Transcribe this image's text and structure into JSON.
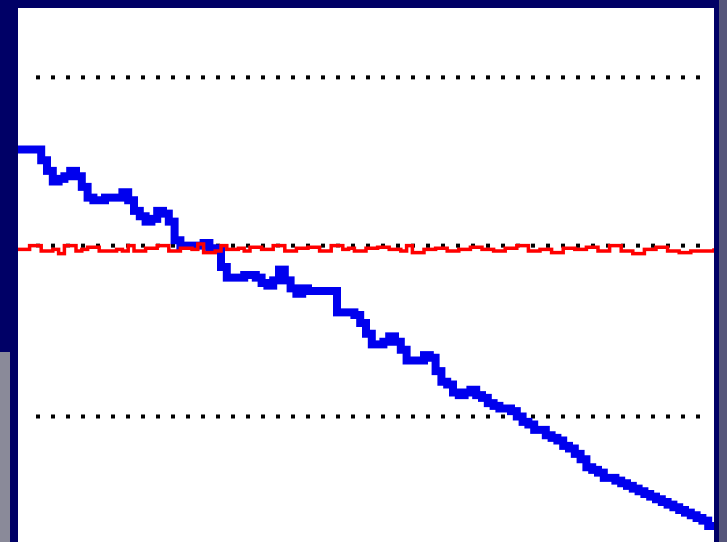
{
  "chart_data": {
    "type": "line",
    "title": "",
    "xlabel": "",
    "ylabel": "",
    "xlim": [
      0,
      120
    ],
    "ylim": [
      0,
      10
    ],
    "grid": false,
    "reference_lines": {
      "color": "#000000",
      "style": "dotted",
      "y": [
        8.7,
        5.55,
        2.35
      ]
    },
    "series": [
      {
        "color": "#0000ee",
        "x": [
          0,
          3,
          4,
          5,
          6,
          7,
          8,
          9,
          10,
          11,
          12,
          13,
          15,
          18,
          19,
          20,
          21,
          22,
          23,
          24,
          25,
          26,
          27,
          28,
          30,
          32,
          33,
          34,
          35,
          36,
          37,
          38,
          39,
          40,
          41,
          42,
          43,
          44,
          45,
          46,
          47,
          48,
          49,
          50,
          51,
          52,
          53,
          55,
          57,
          58,
          59,
          60,
          61,
          62,
          63,
          64,
          65,
          66,
          67,
          68,
          69,
          70,
          71,
          72,
          73,
          74,
          75,
          76,
          77,
          78,
          79,
          80,
          81,
          82,
          83,
          84,
          85,
          86,
          87,
          88,
          89,
          90,
          91,
          92,
          93,
          94,
          95,
          96,
          97,
          98,
          99,
          100,
          101,
          102,
          103,
          104,
          105,
          106,
          107,
          108,
          109,
          110,
          111,
          112,
          113,
          114,
          115,
          116,
          117,
          118,
          119,
          120
        ],
        "values": [
          7.35,
          7.35,
          7.15,
          6.95,
          6.75,
          6.8,
          6.85,
          6.95,
          6.85,
          6.65,
          6.45,
          6.4,
          6.45,
          6.55,
          6.4,
          6.2,
          6.1,
          6.0,
          6.05,
          6.2,
          6.15,
          6.0,
          5.65,
          5.55,
          5.55,
          5.6,
          5.5,
          5.5,
          5.15,
          4.95,
          4.95,
          4.95,
          5.0,
          5.0,
          4.95,
          4.85,
          4.8,
          4.9,
          5.1,
          4.9,
          4.75,
          4.65,
          4.75,
          4.7,
          4.7,
          4.7,
          4.7,
          4.3,
          4.3,
          4.25,
          4.1,
          3.9,
          3.7,
          3.7,
          3.75,
          3.85,
          3.75,
          3.6,
          3.4,
          3.4,
          3.4,
          3.5,
          3.45,
          3.2,
          3.0,
          2.95,
          2.8,
          2.75,
          2.8,
          2.85,
          2.75,
          2.7,
          2.6,
          2.55,
          2.5,
          2.5,
          2.45,
          2.35,
          2.25,
          2.2,
          2.1,
          2.1,
          2.0,
          1.95,
          1.9,
          1.8,
          1.75,
          1.65,
          1.55,
          1.4,
          1.35,
          1.3,
          1.2,
          1.2,
          1.15,
          1.1,
          1.05,
          1.0,
          0.95,
          0.9,
          0.85,
          0.8,
          0.75,
          0.7,
          0.65,
          0.6,
          0.55,
          0.5,
          0.45,
          0.4,
          0.3,
          0.25
        ]
      },
      {
        "color": "#ff0000",
        "x": [
          0,
          2,
          4,
          6,
          7,
          8,
          10,
          11,
          12,
          14,
          15,
          17,
          18,
          19,
          20,
          22,
          23,
          24,
          26,
          28,
          30,
          31,
          32,
          34,
          35,
          36,
          38,
          39,
          40,
          42,
          44,
          46,
          48,
          50,
          52,
          54,
          56,
          57,
          58,
          60,
          62,
          64,
          66,
          67,
          68,
          70,
          72,
          74,
          76,
          78,
          80,
          82,
          84,
          86,
          88,
          90,
          92,
          94,
          96,
          98,
          100,
          102,
          104,
          106,
          108,
          110,
          112,
          114,
          116,
          118,
          120
        ],
        "values": [
          5.48,
          5.55,
          5.45,
          5.48,
          5.4,
          5.55,
          5.45,
          5.48,
          5.52,
          5.45,
          5.45,
          5.48,
          5.45,
          5.55,
          5.45,
          5.5,
          5.5,
          5.55,
          5.45,
          5.5,
          5.48,
          5.58,
          5.42,
          5.45,
          5.55,
          5.48,
          5.5,
          5.45,
          5.52,
          5.48,
          5.55,
          5.45,
          5.5,
          5.52,
          5.45,
          5.55,
          5.48,
          5.5,
          5.45,
          5.5,
          5.52,
          5.48,
          5.45,
          5.55,
          5.42,
          5.48,
          5.5,
          5.45,
          5.48,
          5.52,
          5.48,
          5.45,
          5.5,
          5.55,
          5.45,
          5.48,
          5.42,
          5.5,
          5.48,
          5.52,
          5.45,
          5.55,
          5.45,
          5.4,
          5.48,
          5.52,
          5.45,
          5.42,
          5.45,
          5.45,
          5.5
        ]
      }
    ]
  }
}
